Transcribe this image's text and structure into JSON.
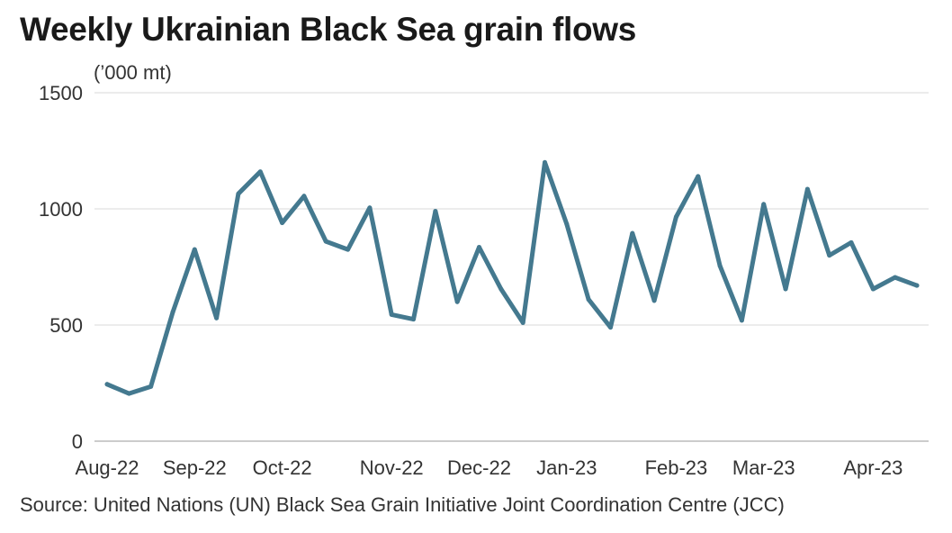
{
  "chart_data": {
    "type": "line",
    "title": "Weekly Ukrainian Black Sea grain flows",
    "unit_label": "(’000 mt)",
    "source": "Source: United Nations (UN) Black Sea Grain Initiative Joint Coordination Centre (JCC)",
    "ylim": [
      0,
      1500
    ],
    "yticks": [
      0,
      500,
      1000,
      1500
    ],
    "grid": true,
    "color": "#44798f",
    "x_tick_labels": [
      {
        "label": "Aug-22",
        "index": 0
      },
      {
        "label": "Sep-22",
        "index": 4
      },
      {
        "label": "Oct-22",
        "index": 8
      },
      {
        "label": "Nov-22",
        "index": 13
      },
      {
        "label": "Dec-22",
        "index": 17
      },
      {
        "label": "Jan-23",
        "index": 21
      },
      {
        "label": "Feb-23",
        "index": 26
      },
      {
        "label": "Mar-23",
        "index": 30
      },
      {
        "label": "Apr-23",
        "index": 35
      }
    ],
    "series": [
      {
        "values": [
          245,
          205,
          235,
          555,
          825,
          530,
          1065,
          1160,
          940,
          1055,
          860,
          825,
          1005,
          545,
          525,
          990,
          600,
          835,
          655,
          510,
          1200,
          935,
          610,
          490,
          895,
          605,
          965,
          1140,
          755,
          520,
          1020,
          655,
          1085,
          800,
          855,
          655,
          705,
          670
        ]
      }
    ]
  }
}
